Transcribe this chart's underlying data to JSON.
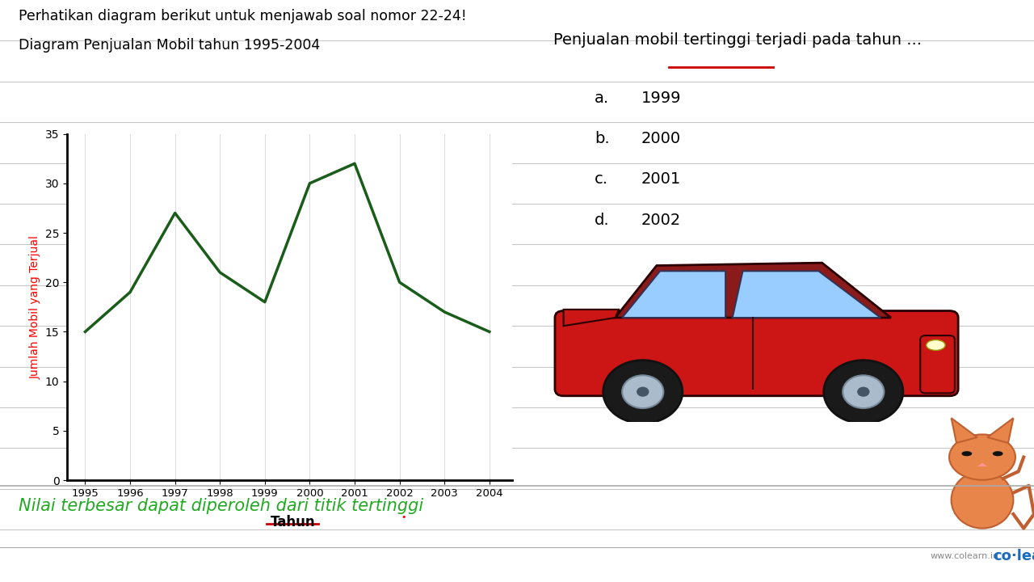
{
  "title_line1": "Perhatikan diagram berikut untuk menjawab soal nomor 22-24!",
  "title_line2": "Diagram Penjualan Mobil tahun 1995-2004",
  "years": [
    1995,
    1996,
    1997,
    1998,
    1999,
    2000,
    2001,
    2002,
    2003,
    2004
  ],
  "values": [
    15,
    19,
    27,
    21,
    18,
    30,
    32,
    20,
    17,
    15
  ],
  "line_color": "#1a5c1a",
  "line_width": 2.5,
  "ylabel": "Jumlah Mobil yang Terjual",
  "xlabel": "Tahun",
  "ylim": [
    0,
    35
  ],
  "yticks": [
    0,
    5,
    10,
    15,
    20,
    25,
    30,
    35
  ],
  "bg_color": "#ffffff",
  "question_text": "Penjualan mobil tertinggi terjadi pada tahun ...",
  "options": [
    "a.",
    "b.",
    "c.",
    "d."
  ],
  "option_values": [
    "1999",
    "2000",
    "2001",
    "2002"
  ],
  "answer_hint": "Nilai terbesar dapat diperoleh dari titik tertinggi",
  "answer_hint_color": "#22aa22",
  "grid_color": "#dddddd",
  "underline_color": "#cc0000",
  "notebook_line_color": "#c8c8c8"
}
